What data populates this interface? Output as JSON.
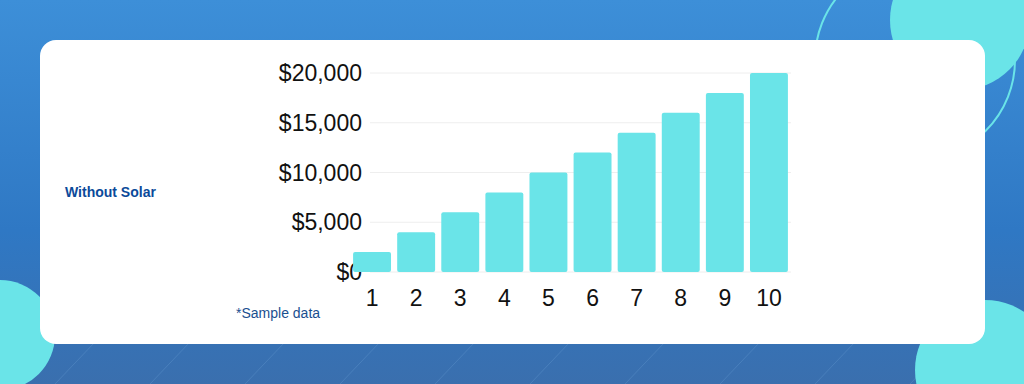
{
  "chart_data": {
    "type": "bar",
    "ylabel": "Without Solar",
    "annotation": "*Sample data",
    "categories": [
      "1",
      "2",
      "3",
      "4",
      "5",
      "6",
      "7",
      "8",
      "9",
      "10"
    ],
    "values": [
      2000,
      4000,
      6000,
      8000,
      10000,
      12000,
      14000,
      16000,
      18000,
      20000
    ],
    "color": "#6ae4e8",
    "ylim": [
      0,
      20000
    ],
    "yticks": [
      {
        "value": 0,
        "label": "$0"
      },
      {
        "value": 5000,
        "label": "$5,000"
      },
      {
        "value": 10000,
        "label": "$10,000"
      },
      {
        "value": 15000,
        "label": "$15,000"
      },
      {
        "value": 20000,
        "label": "$20,000"
      }
    ],
    "grid": true
  }
}
